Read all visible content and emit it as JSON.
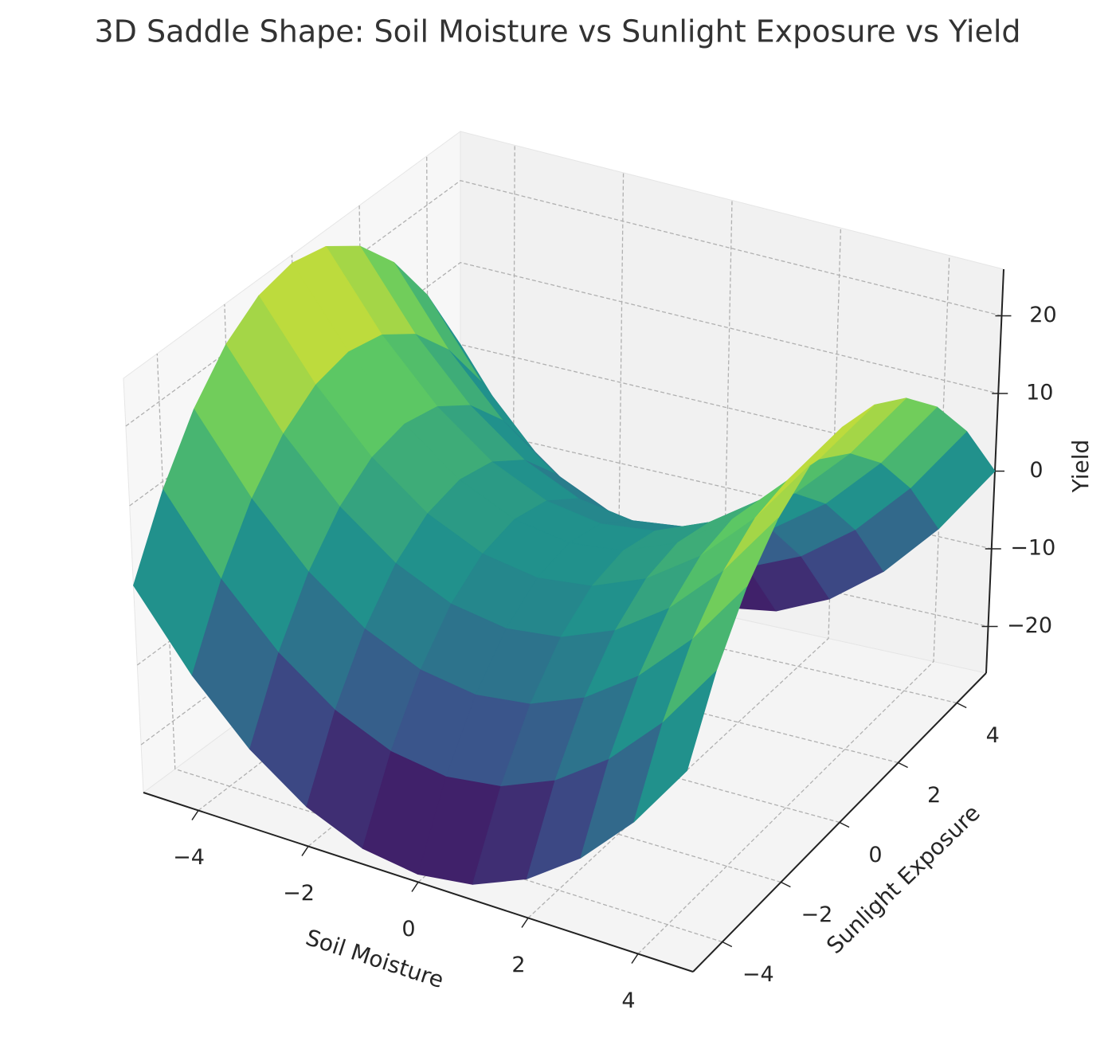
{
  "chart_data": {
    "type": "surface",
    "title": "3D Saddle Shape: Soil Moisture vs Sunlight Exposure vs Yield",
    "x_label": "Soil Moisture",
    "y_label": "Sunlight Exposure",
    "z_label": "Yield",
    "x": [
      -5,
      -4,
      -3,
      -2,
      -1,
      0,
      1,
      2,
      3,
      4,
      5
    ],
    "y": [
      -5,
      -4,
      -3,
      -2,
      -1,
      0,
      1,
      2,
      3,
      4,
      5
    ],
    "z": [
      [
        0,
        -9,
        -16,
        -21,
        -24,
        -25,
        -24,
        -21,
        -16,
        -9,
        0
      ],
      [
        9,
        0,
        -7,
        -12,
        -15,
        -16,
        -15,
        -12,
        -7,
        0,
        9
      ],
      [
        16,
        7,
        0,
        -5,
        -8,
        -9,
        -8,
        -5,
        0,
        7,
        16
      ],
      [
        21,
        12,
        5,
        0,
        -3,
        -4,
        -3,
        0,
        5,
        12,
        21
      ],
      [
        24,
        15,
        8,
        3,
        0,
        -1,
        0,
        3,
        8,
        15,
        24
      ],
      [
        25,
        16,
        9,
        4,
        1,
        0,
        1,
        4,
        9,
        16,
        25
      ],
      [
        24,
        15,
        8,
        3,
        0,
        -1,
        0,
        3,
        8,
        15,
        24
      ],
      [
        21,
        12,
        5,
        0,
        -3,
        -4,
        -3,
        0,
        5,
        12,
        21
      ],
      [
        16,
        7,
        0,
        -5,
        -8,
        -9,
        -8,
        -5,
        0,
        7,
        16
      ],
      [
        9,
        0,
        -7,
        -12,
        -15,
        -16,
        -15,
        -12,
        -7,
        0,
        9
      ],
      [
        0,
        -9,
        -16,
        -21,
        -24,
        -25,
        -24,
        -21,
        -16,
        -9,
        0
      ]
    ],
    "colormap": "viridis",
    "xlim": [
      -5,
      5
    ],
    "ylim": [
      -5,
      5
    ],
    "zlim": [
      -26,
      26
    ],
    "xticks": [
      {
        "value": -4,
        "label": "−4"
      },
      {
        "value": -2,
        "label": "−2"
      },
      0,
      2,
      4
    ],
    "yticks": [
      {
        "value": -4,
        "label": "−4"
      },
      {
        "value": -2,
        "label": "−2"
      },
      0,
      2,
      4
    ],
    "zticks": [
      {
        "value": -20,
        "label": "−20"
      },
      {
        "value": -10,
        "label": "−10"
      },
      0,
      10,
      20
    ],
    "grid": true
  }
}
